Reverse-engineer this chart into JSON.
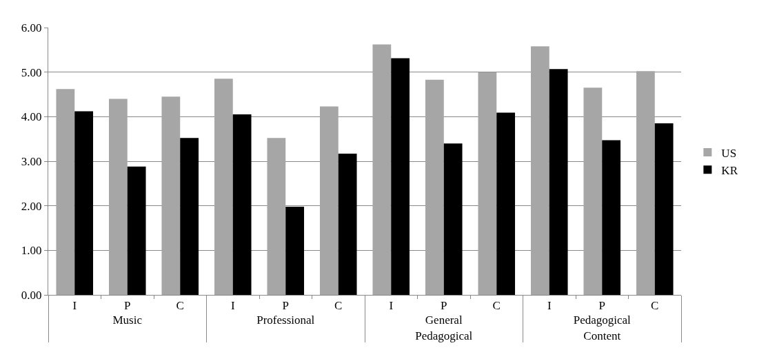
{
  "chart_data": {
    "type": "bar",
    "categories": [
      "I",
      "P",
      "C",
      "I",
      "P",
      "C",
      "I",
      "P",
      "C",
      "I",
      "P",
      "C"
    ],
    "annotations": [
      "Music",
      "Professional",
      "General Pedagogical",
      "Pedagogical Content"
    ],
    "series": [
      {
        "name": "US",
        "color": "#a6a6a6",
        "values": [
          4.62,
          4.4,
          4.45,
          4.85,
          3.52,
          4.23,
          5.62,
          4.83,
          5.0,
          5.58,
          4.65,
          5.02
        ]
      },
      {
        "name": "KR",
        "color": "#000000",
        "values": [
          4.12,
          2.88,
          3.52,
          4.05,
          1.98,
          3.17,
          5.31,
          3.4,
          4.09,
          5.07,
          3.47,
          3.85
        ]
      }
    ],
    "ylim": [
      0,
      6
    ],
    "yticks": [
      {
        "value": 0,
        "label": "0.00"
      },
      {
        "value": 1,
        "label": "1.00"
      },
      {
        "value": 2,
        "label": "2.00"
      },
      {
        "value": 3,
        "label": "3.00"
      },
      {
        "value": 4,
        "label": "4.00"
      },
      {
        "value": 5,
        "label": "5.00"
      },
      {
        "value": 6,
        "label": "6.00"
      }
    ],
    "grid": "y",
    "legend": "right"
  }
}
